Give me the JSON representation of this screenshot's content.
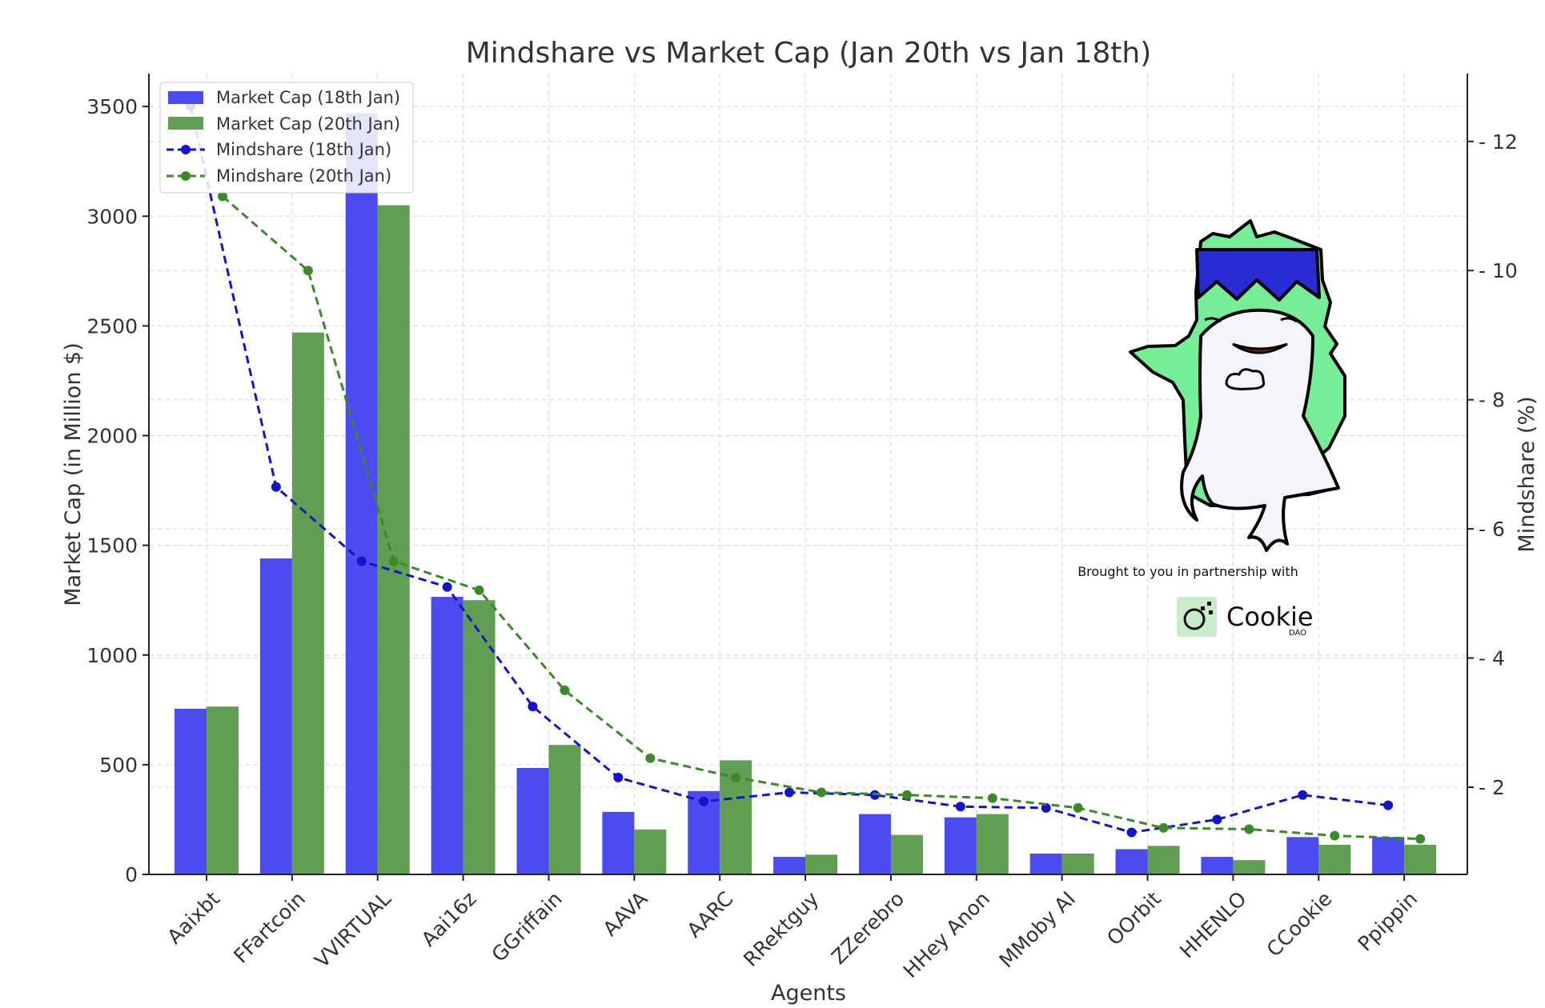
{
  "colors": {
    "series_18_bar": "#4b4bf0",
    "series_20_bar": "#5f9e53",
    "series_18_line": "#1414cc",
    "series_20_line": "#3a8a27",
    "grid": "#d9d9d9",
    "axis": "#222222"
  },
  "promo": {
    "caption": "Brought to you in partnership with",
    "brand": "Cookie",
    "brand_sub": "DAO",
    "mascot_icon": "shark-mascot-icon",
    "logo_icon": "cookie-logo-icon"
  },
  "chart_data": {
    "type": "bar",
    "title": "Mindshare vs Market Cap (Jan 20th vs Jan 18th)",
    "xlabel": "Agents",
    "ylabel": "Market Cap (in Million $)",
    "y2label": "Mindshare (%)",
    "ylim": [
      0,
      3650
    ],
    "y2lim": [
      0.65,
      13.05
    ],
    "yticks": [
      0,
      500,
      1000,
      1500,
      2000,
      2500,
      3000,
      3500
    ],
    "y2ticks": [
      2,
      4,
      6,
      8,
      10,
      12
    ],
    "grid": true,
    "legend_position": "top-left",
    "categories": [
      "Aaixbt",
      "FFartcoin",
      "VVIRTUAL",
      "Aai16z",
      "GGriffain",
      "AAVA",
      "AARC",
      "RRektguy",
      "ZZerebro",
      "HHey Anon",
      "MMoby AI",
      "OOrbit",
      "HHENLO",
      "CCookie",
      "Ppippin"
    ],
    "series": [
      {
        "name": "Market Cap (18th Jan)",
        "kind": "bar",
        "axis": "left",
        "values": [
          755,
          1440,
          3470,
          1265,
          485,
          285,
          380,
          80,
          275,
          260,
          95,
          115,
          80,
          170,
          170
        ]
      },
      {
        "name": "Market Cap (20th Jan)",
        "kind": "bar",
        "axis": "left",
        "values": [
          765,
          2470,
          3050,
          1250,
          590,
          205,
          520,
          90,
          180,
          275,
          95,
          130,
          65,
          135,
          135
        ]
      },
      {
        "name": "Mindshare (18th Jan)",
        "kind": "line",
        "axis": "right",
        "values": [
          12.55,
          6.65,
          5.5,
          5.1,
          3.25,
          2.15,
          1.78,
          1.92,
          1.88,
          1.7,
          1.68,
          1.3,
          1.5,
          1.88,
          1.72
        ]
      },
      {
        "name": "Mindshare (20th Jan)",
        "kind": "line",
        "axis": "right",
        "values": [
          11.15,
          10.0,
          5.5,
          5.05,
          3.5,
          2.45,
          2.15,
          1.92,
          1.88,
          1.83,
          1.68,
          1.37,
          1.35,
          1.25,
          1.2
        ]
      }
    ]
  }
}
